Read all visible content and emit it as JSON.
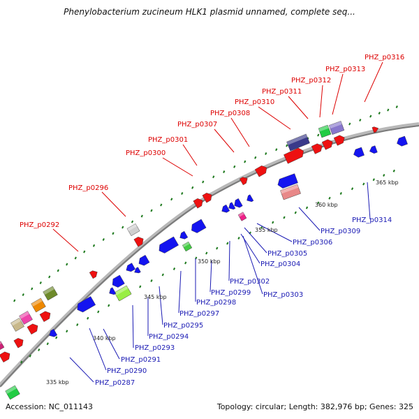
{
  "title": "Phenylobacterium zucineum HLK1 plasmid unnamed, complete seq...",
  "accession": "Accession: NC_011143",
  "topology": "Topology: circular; Length: 382,976 bp; Genes: 325",
  "colors": {
    "backbone": "#8a8a8a",
    "forward_label": "#dd0000",
    "reverse_label": "#1a1ab4",
    "tick": "#1f7a1f",
    "reverse_gene": "#1414f0",
    "forward_gene": "#ee1111"
  },
  "kbp_markers": [
    "335 kbp",
    "340 kbp",
    "345 kbp",
    "350 kbp",
    "355 kbp",
    "360 kbp",
    "365 kbp"
  ],
  "forward_labels": [
    "PHZ_p0292",
    "PHZ_p0296",
    "PHZ_p0300",
    "PHZ_p0301",
    "PHZ_p0307",
    "PHZ_p0308",
    "PHZ_p0310",
    "PHZ_p0311",
    "PHZ_p0312",
    "PHZ_p0313",
    "PHZ_p0316"
  ],
  "reverse_labels": [
    "PHZ_p0287",
    "PHZ_p0290",
    "PHZ_p0291",
    "PHZ_p0293",
    "PHZ_p0294",
    "PHZ_p0295",
    "PHZ_p0297",
    "PHZ_p0298",
    "PHZ_p0299",
    "PHZ_p0302",
    "PHZ_p0303",
    "PHZ_p0304",
    "PHZ_p0305",
    "PHZ_p0306",
    "PHZ_p0309",
    "PHZ_p0314"
  ]
}
